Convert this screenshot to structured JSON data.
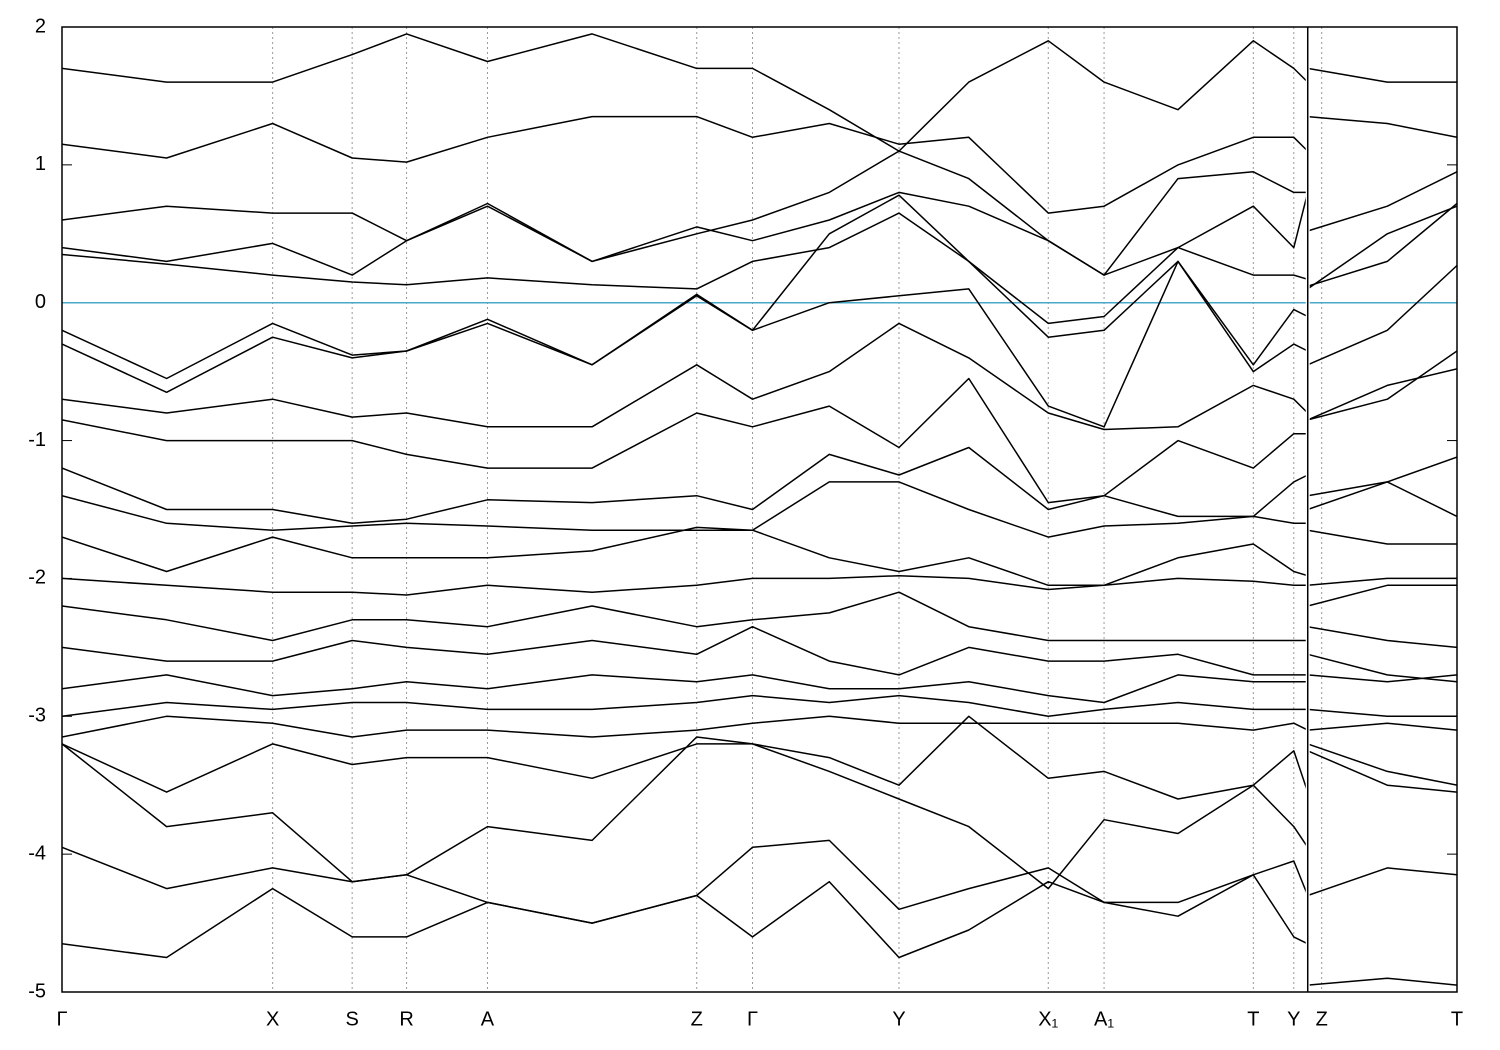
{
  "chart_data": {
    "type": "line",
    "xlim": [
      0,
      1
    ],
    "ylim": [
      -5,
      2
    ],
    "yticks": [
      -5,
      -4,
      -3,
      -2,
      -1,
      0,
      1,
      2
    ],
    "xticks": [
      {
        "value": 0,
        "label": "Γ"
      },
      {
        "value": 0.151,
        "label": "X"
      },
      {
        "value": 0.208,
        "label": "S"
      },
      {
        "value": 0.247,
        "label": "R"
      },
      {
        "value": 0.305,
        "label": "A"
      },
      {
        "value": 0.455,
        "label": "Z"
      },
      {
        "value": 0.495,
        "label": "Γ"
      },
      {
        "value": 0.6,
        "label": "Y"
      },
      {
        "value": 0.707,
        "label": "X₁"
      },
      {
        "value": 0.747,
        "label": "A₁"
      },
      {
        "value": 0.854,
        "label": "T"
      },
      {
        "value": 0.883,
        "label": "Y"
      },
      {
        "value": 0.903,
        "label": "Z"
      },
      {
        "value": 1,
        "label": "T"
      }
    ],
    "breaks": [
      0.893
    ],
    "grid": true,
    "fermi_level": 0,
    "fermi_color": "#4aa8c8",
    "x": [
      0,
      0.075,
      0.151,
      0.208,
      0.247,
      0.305,
      0.38,
      0.455,
      0.495,
      0.55,
      0.6,
      0.65,
      0.707,
      0.747,
      0.8,
      0.854,
      0.883,
      0.893,
      0.893,
      0.893,
      0.95,
      1
    ],
    "series": [
      {
        "color": "#000000",
        "values": [
          1.7,
          1.6,
          1.6,
          1.8,
          1.95,
          1.75,
          1.95,
          1.7,
          1.7,
          1.4,
          1.1,
          1.6,
          1.9,
          1.6,
          1.4,
          1.9,
          1.7,
          1.6,
          null,
          1.7,
          1.6,
          1.6
        ]
      },
      {
        "color": "#000000",
        "values": [
          1.15,
          1.05,
          1.3,
          1.05,
          1.02,
          1.2,
          1.35,
          1.35,
          1.2,
          1.3,
          1.15,
          1.2,
          0.65,
          0.7,
          1.0,
          1.2,
          1.2,
          1.1,
          null,
          1.35,
          1.3,
          1.2
        ]
      },
      {
        "color": "#000000",
        "values": [
          0.6,
          0.7,
          0.65,
          0.65,
          0.45,
          0.72,
          0.3,
          0.5,
          0.6,
          0.8,
          1.1,
          0.9,
          0.45,
          0.2,
          0.9,
          0.95,
          0.8,
          0.8,
          null,
          0.52,
          0.7,
          0.95
        ]
      },
      {
        "color": "#000000",
        "values": [
          0.4,
          0.3,
          0.43,
          0.2,
          0.45,
          0.7,
          0.3,
          0.55,
          0.45,
          0.6,
          0.8,
          0.7,
          0.45,
          0.2,
          0.4,
          0.7,
          0.4,
          0.8,
          null,
          0.1,
          0.5,
          0.7
        ]
      },
      {
        "color": "#000000",
        "values": [
          0.35,
          0.28,
          0.2,
          0.15,
          0.13,
          0.18,
          0.13,
          0.1,
          0.3,
          0.4,
          0.65,
          0.3,
          -0.15,
          -0.1,
          0.4,
          0.2,
          0.2,
          0.17,
          null,
          0.12,
          0.3,
          0.72
        ]
      },
      {
        "color": "#000000",
        "values": [
          -0.2,
          -0.55,
          -0.15,
          -0.38,
          -0.35,
          -0.12,
          -0.45,
          0.05,
          -0.2,
          0.5,
          0.78,
          0.3,
          -0.25,
          -0.2,
          0.3,
          -0.45,
          -0.05,
          -0.1,
          null,
          -0.45,
          -0.2,
          0.27
        ]
      },
      {
        "color": "#000000",
        "values": [
          -0.3,
          -0.65,
          -0.25,
          -0.4,
          -0.35,
          -0.15,
          -0.45,
          0.06,
          -0.2,
          0.0,
          0.05,
          0.1,
          -0.75,
          -0.9,
          0.3,
          -0.5,
          -0.3,
          -0.35,
          null,
          -0.85,
          -0.7,
          -0.35
        ]
      },
      {
        "color": "#000000",
        "values": [
          -0.7,
          -0.8,
          -0.7,
          -0.83,
          -0.8,
          -0.9,
          -0.9,
          -0.45,
          -0.7,
          -0.5,
          -0.15,
          -0.4,
          -0.8,
          -0.92,
          -0.9,
          -0.6,
          -0.7,
          -0.8,
          null,
          -0.85,
          -0.6,
          -0.48
        ]
      },
      {
        "color": "#000000",
        "values": [
          -0.85,
          -1.0,
          -1.0,
          -1.0,
          -1.1,
          -1.2,
          -1.2,
          -0.8,
          -0.9,
          -0.75,
          -1.05,
          -0.55,
          -1.45,
          -1.4,
          -1.0,
          -1.2,
          -0.95,
          -0.95,
          null,
          -1.4,
          -1.3,
          -1.12
        ]
      },
      {
        "color": "#000000",
        "values": [
          -1.2,
          -1.5,
          -1.5,
          -1.6,
          -1.57,
          -1.43,
          -1.45,
          -1.4,
          -1.5,
          -1.1,
          -1.25,
          -1.05,
          -1.5,
          -1.4,
          -1.55,
          -1.55,
          -1.3,
          -1.25,
          null,
          -1.5,
          -1.3,
          -1.55
        ]
      },
      {
        "color": "#000000",
        "values": [
          -1.4,
          -1.6,
          -1.65,
          -1.62,
          -1.6,
          -1.62,
          -1.65,
          -1.65,
          -1.65,
          -1.3,
          -1.3,
          -1.5,
          -1.7,
          -1.62,
          -1.6,
          -1.55,
          -1.6,
          -1.6,
          null,
          -1.65,
          -1.75,
          -1.75
        ]
      },
      {
        "color": "#000000",
        "values": [
          -1.7,
          -1.95,
          -1.7,
          -1.85,
          -1.85,
          -1.85,
          -1.8,
          -1.63,
          -1.65,
          -1.85,
          -1.95,
          -1.85,
          -2.05,
          -2.05,
          -1.85,
          -1.75,
          -1.95,
          -1.98,
          null,
          -2.05,
          -2.0,
          -2.0
        ]
      },
      {
        "color": "#000000",
        "values": [
          -2.0,
          -2.05,
          -2.1,
          -2.1,
          -2.12,
          -2.05,
          -2.1,
          -2.05,
          -2.0,
          -2.0,
          -1.98,
          -2.0,
          -2.08,
          -2.05,
          -2.0,
          -2.02,
          -2.05,
          -2.05,
          null,
          -2.2,
          -2.05,
          -2.05
        ]
      },
      {
        "color": "#000000",
        "values": [
          -2.2,
          -2.3,
          -2.45,
          -2.3,
          -2.3,
          -2.35,
          -2.2,
          -2.35,
          -2.3,
          -2.25,
          -2.1,
          -2.35,
          -2.45,
          -2.45,
          -2.45,
          -2.45,
          -2.45,
          -2.45,
          null,
          -2.35,
          -2.45,
          -2.5
        ]
      },
      {
        "color": "#000000",
        "values": [
          -2.5,
          -2.6,
          -2.6,
          -2.45,
          -2.5,
          -2.55,
          -2.45,
          -2.55,
          -2.35,
          -2.6,
          -2.7,
          -2.5,
          -2.6,
          -2.6,
          -2.55,
          -2.7,
          -2.7,
          -2.7,
          null,
          -2.55,
          -2.7,
          -2.75
        ]
      },
      {
        "color": "#000000",
        "values": [
          -2.8,
          -2.7,
          -2.85,
          -2.8,
          -2.75,
          -2.8,
          -2.7,
          -2.75,
          -2.7,
          -2.8,
          -2.8,
          -2.75,
          -2.85,
          -2.9,
          -2.7,
          -2.75,
          -2.75,
          -2.75,
          null,
          -2.7,
          -2.75,
          -2.7
        ]
      },
      {
        "color": "#000000",
        "values": [
          -3.0,
          -2.9,
          -2.95,
          -2.9,
          -2.9,
          -2.95,
          -2.95,
          -2.9,
          -2.85,
          -2.9,
          -2.85,
          -2.9,
          -3.0,
          -2.95,
          -2.9,
          -2.95,
          -2.95,
          -2.95,
          null,
          -2.95,
          -3.0,
          -3.0
        ]
      },
      {
        "color": "#000000",
        "values": [
          -3.15,
          -3.0,
          -3.05,
          -3.15,
          -3.1,
          -3.1,
          -3.15,
          -3.1,
          -3.05,
          -3.0,
          -3.05,
          -3.05,
          -3.05,
          -3.05,
          -3.05,
          -3.1,
          -3.05,
          -3.1,
          null,
          -3.1,
          -3.05,
          -3.1
        ]
      },
      {
        "color": "#000000",
        "values": [
          -3.2,
          -3.55,
          -3.2,
          -3.35,
          -3.3,
          -3.3,
          -3.45,
          -3.2,
          -3.2,
          -3.3,
          -3.5,
          -3.0,
          -3.45,
          -3.4,
          -3.6,
          -3.5,
          -3.25,
          -3.55,
          null,
          -3.2,
          -3.4,
          -3.5
        ]
      },
      {
        "color": "#000000",
        "values": [
          -3.2,
          -3.8,
          -3.7,
          -4.2,
          -4.15,
          -3.8,
          -3.9,
          -3.15,
          -3.2,
          -3.4,
          -3.6,
          -3.8,
          -4.25,
          -3.75,
          -3.85,
          -3.5,
          -3.8,
          -3.95,
          null,
          -3.25,
          -3.5,
          -3.55
        ]
      },
      {
        "color": "#000000",
        "values": [
          -3.95,
          -4.25,
          -4.1,
          -4.2,
          -4.15,
          -4.35,
          -4.5,
          -4.3,
          -3.95,
          -3.9,
          -4.4,
          -4.25,
          -4.1,
          -4.35,
          -4.35,
          -4.15,
          -4.05,
          -4.3,
          null,
          -4.3,
          -4.1,
          -4.15
        ]
      },
      {
        "color": "#000000",
        "values": [
          -4.65,
          -4.75,
          -4.25,
          -4.6,
          -4.6,
          -4.35,
          -4.5,
          -4.3,
          -4.6,
          -4.2,
          -4.75,
          -4.55,
          -4.2,
          -4.35,
          -4.45,
          -4.15,
          -4.6,
          -4.65,
          null,
          -4.95,
          -4.9,
          -4.95
        ]
      }
    ]
  }
}
